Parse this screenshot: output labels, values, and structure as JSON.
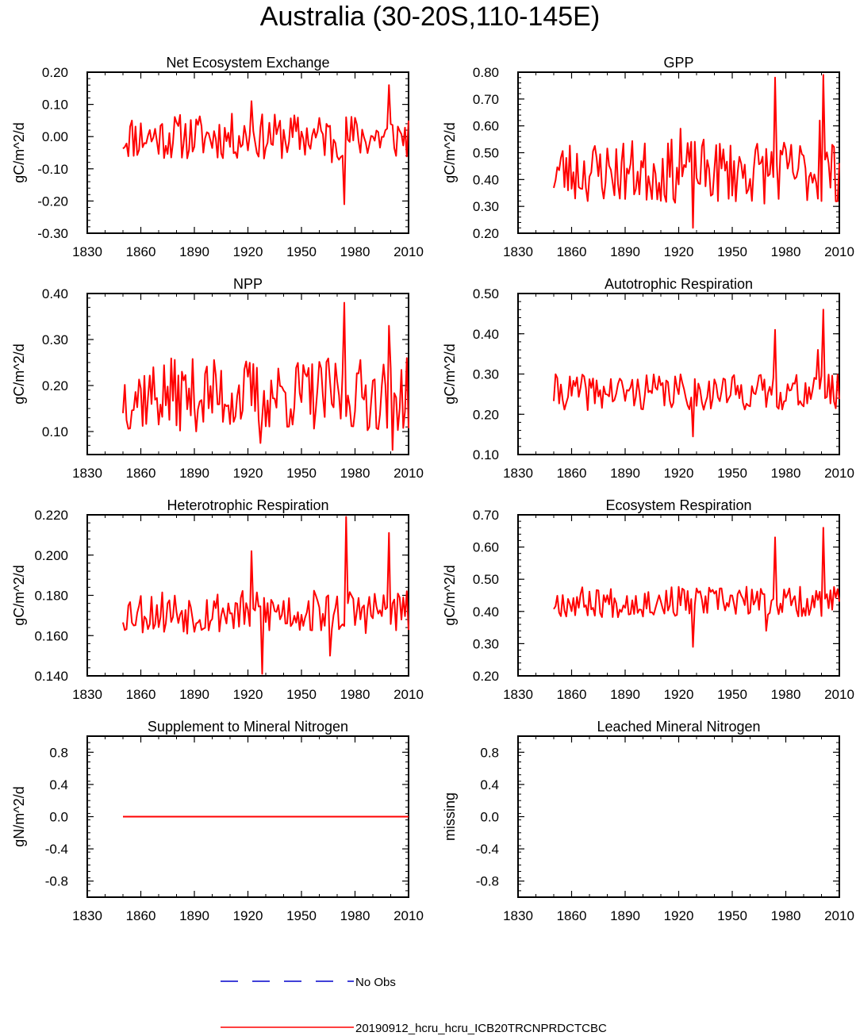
{
  "title": "Australia (30-20S,110-145E)",
  "colors": {
    "model": "#ff0000",
    "obs": "#0000cc",
    "axis": "#000000"
  },
  "x_ticks": [
    1830,
    1860,
    1890,
    1920,
    1950,
    1980,
    2010
  ],
  "x_range": [
    1830,
    2010
  ],
  "legend": [
    {
      "label": "No Obs",
      "style": "dashed",
      "color": "#0000cc"
    },
    {
      "label": "20190912_hcru_hcru_ICB20TRCNPRDCTCBC",
      "style": "solid",
      "color": "#ff0000"
    }
  ],
  "chart_data": [
    {
      "type": "line",
      "title": "Net Ecosystem Exchange",
      "ylabel": "gC/m^2/d",
      "ylim": [
        -0.3,
        0.2
      ],
      "yticks": [
        "-0.30",
        "-0.20",
        "-0.10",
        "0.00",
        "0.10",
        "0.20"
      ],
      "series": {
        "start": 1850,
        "end": 2010,
        "base": 0.0,
        "amp": 0.045,
        "seed": 11,
        "events": [
          [
            1974,
            -0.21
          ],
          [
            1999,
            0.16
          ],
          [
            1922,
            0.11
          ],
          [
            1967,
            -0.08
          ]
        ]
      }
    },
    {
      "type": "line",
      "title": "GPP",
      "ylabel": "gC/m^2/d",
      "ylim": [
        0.2,
        0.8
      ],
      "yticks": [
        "0.20",
        "0.30",
        "0.40",
        "0.50",
        "0.60",
        "0.70",
        "0.80"
      ],
      "series": {
        "start": 1850,
        "end": 2010,
        "base": 0.43,
        "amp": 0.075,
        "seed": 23,
        "events": [
          [
            1974,
            0.78
          ],
          [
            2001,
            0.79
          ],
          [
            1928,
            0.22
          ],
          [
            1921,
            0.59
          ],
          [
            1999,
            0.62
          ]
        ]
      }
    },
    {
      "type": "line",
      "title": "NPP",
      "ylabel": "gC/m^2/d",
      "ylim": [
        0.05,
        0.4
      ],
      "yticks": [
        "0.10",
        "0.20",
        "0.30",
        "0.40"
      ],
      "series": {
        "start": 1850,
        "end": 2010,
        "base": 0.18,
        "amp": 0.05,
        "seed": 37,
        "events": [
          [
            1974,
            0.38
          ],
          [
            2001,
            0.06
          ],
          [
            1999,
            0.33
          ],
          [
            1927,
            0.075
          ]
        ]
      }
    },
    {
      "type": "line",
      "title": "Autotrophic Respiration",
      "ylabel": "gC/m^2/d",
      "ylim": [
        0.1,
        0.5
      ],
      "yticks": [
        "0.10",
        "0.20",
        "0.30",
        "0.40",
        "0.50"
      ],
      "series": {
        "start": 1850,
        "end": 2010,
        "base": 0.255,
        "amp": 0.028,
        "seed": 41,
        "events": [
          [
            1974,
            0.41
          ],
          [
            2001,
            0.46
          ],
          [
            1928,
            0.145
          ],
          [
            1998,
            0.36
          ]
        ]
      }
    },
    {
      "type": "line",
      "title": "Heterotrophic Respiration",
      "ylabel": "gC/m^2/d",
      "ylim": [
        0.14,
        0.22
      ],
      "yticks": [
        "0.140",
        "0.160",
        "0.180",
        "0.200",
        "0.220"
      ],
      "series": {
        "start": 1850,
        "end": 2010,
        "base": 0.172,
        "amp": 0.007,
        "seed": 53,
        "events": [
          [
            1975,
            0.219
          ],
          [
            1922,
            0.202
          ],
          [
            1928,
            0.141
          ],
          [
            1999,
            0.211
          ],
          [
            1966,
            0.15
          ]
        ]
      }
    },
    {
      "type": "line",
      "title": "Ecosystem Respiration",
      "ylabel": "gC/m^2/d",
      "ylim": [
        0.2,
        0.7
      ],
      "yticks": [
        "0.20",
        "0.30",
        "0.40",
        "0.50",
        "0.60",
        "0.70"
      ],
      "series": {
        "start": 1850,
        "end": 2010,
        "base": 0.43,
        "amp": 0.03,
        "seed": 67,
        "events": [
          [
            1974,
            0.63
          ],
          [
            2001,
            0.66
          ],
          [
            1928,
            0.29
          ],
          [
            1969,
            0.34
          ]
        ]
      }
    },
    {
      "type": "line",
      "title": "Supplement to Mineral Nitrogen",
      "ylabel": "gN/m^2/d",
      "ylim": [
        -1.0,
        1.0
      ],
      "yticks": [
        "-0.8",
        "-0.4",
        "0.0",
        "0.4",
        "0.8"
      ],
      "series": {
        "start": 1850,
        "end": 2010,
        "base": 0.0,
        "amp": 0.0,
        "seed": 1,
        "events": []
      }
    },
    {
      "type": "line",
      "title": "Leached Mineral Nitrogen",
      "ylabel": "missing",
      "ylim": [
        -1.0,
        1.0
      ],
      "yticks": [
        "-0.8",
        "-0.4",
        "0.0",
        "0.4",
        "0.8"
      ],
      "series": null
    }
  ]
}
